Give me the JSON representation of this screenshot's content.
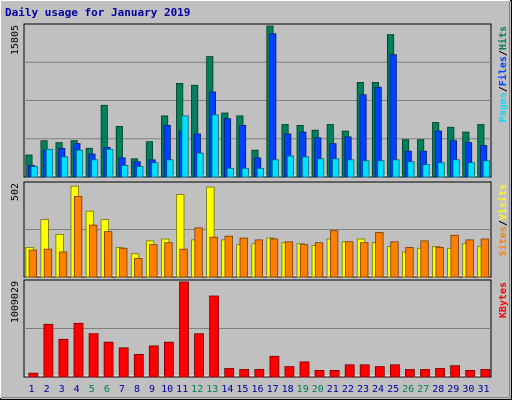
{
  "title": "Daily usage for January 2019",
  "colors": {
    "hits": "#00805c",
    "files": "#0040ff",
    "pages": "#00e0ff",
    "visits": "#ffff00",
    "sites": "#ff8000",
    "kbytes": "#ff0000",
    "weekend_label": "#00805c",
    "weekday_label": "#0000a0"
  },
  "chart_data": [
    {
      "type": "bar",
      "panel": "hits-files-pages",
      "ymax_label": "15805",
      "ylim": [
        0,
        15805
      ],
      "legend": [
        {
          "text": "Pages",
          "color": "#00e0ff"
        },
        {
          "text": "/",
          "color": "#000000"
        },
        {
          "text": "Files",
          "color": "#0040ff"
        },
        {
          "text": "/",
          "color": "#000000"
        },
        {
          "text": "Hits",
          "color": "#00805c"
        }
      ],
      "categories": [
        "1",
        "2",
        "3",
        "4",
        "5",
        "6",
        "7",
        "8",
        "9",
        "10",
        "11",
        "12",
        "13",
        "14",
        "15",
        "16",
        "17",
        "18",
        "19",
        "20",
        "21",
        "22",
        "23",
        "24",
        "25",
        "26",
        "27",
        "28",
        "29",
        "30",
        "31"
      ],
      "series": [
        {
          "name": "Hits",
          "values": [
            2300,
            3800,
            3600,
            3800,
            3000,
            7500,
            5300,
            1900,
            3700,
            6400,
            9800,
            9600,
            12600,
            6700,
            6400,
            2800,
            15805,
            5500,
            5400,
            4900,
            5500,
            4800,
            9900,
            9900,
            14900,
            3900,
            3900,
            5700,
            5200,
            4700,
            5500
          ]
        },
        {
          "name": "Files",
          "values": [
            1200,
            2800,
            3000,
            3500,
            2400,
            3100,
            2000,
            1600,
            1800,
            5400,
            4800,
            4500,
            8900,
            6100,
            5400,
            2000,
            15000,
            4500,
            4700,
            4100,
            3500,
            4200,
            8600,
            9400,
            12800,
            2700,
            2700,
            4800,
            3800,
            3600,
            3300
          ]
        },
        {
          "name": "Pages",
          "values": [
            1100,
            2900,
            2100,
            2800,
            1800,
            2900,
            1200,
            1100,
            1500,
            1800,
            6400,
            2500,
            6500,
            900,
            900,
            900,
            1800,
            2200,
            2100,
            1900,
            1900,
            1800,
            1700,
            1700,
            1800,
            1600,
            1300,
            1500,
            1800,
            1500,
            1700
          ]
        }
      ]
    },
    {
      "type": "bar",
      "panel": "visits-sites",
      "ymax_label": "502",
      "ylim": [
        0,
        502
      ],
      "legend": [
        {
          "text": "Sites",
          "color": "#ff8000"
        },
        {
          "text": "/",
          "color": "#000000"
        },
        {
          "text": "Visits",
          "color": "#ffff00"
        }
      ],
      "categories": [
        "1",
        "2",
        "3",
        "4",
        "5",
        "6",
        "7",
        "8",
        "9",
        "10",
        "11",
        "12",
        "13",
        "14",
        "15",
        "16",
        "17",
        "18",
        "19",
        "20",
        "21",
        "22",
        "23",
        "24",
        "25",
        "26",
        "27",
        "28",
        "29",
        "30",
        "31"
      ],
      "series": [
        {
          "name": "Visits",
          "values": [
            160,
            310,
            230,
            490,
            355,
            310,
            160,
            125,
            195,
            205,
            445,
            200,
            485,
            200,
            175,
            180,
            210,
            185,
            180,
            170,
            205,
            190,
            205,
            185,
            165,
            135,
            155,
            165,
            155,
            180,
            165
          ]
        },
        {
          "name": "Sites",
          "values": [
            145,
            150,
            135,
            435,
            280,
            245,
            155,
            100,
            175,
            185,
            150,
            265,
            215,
            220,
            210,
            200,
            205,
            190,
            175,
            185,
            250,
            190,
            185,
            240,
            190,
            160,
            195,
            160,
            225,
            200,
            205
          ]
        }
      ]
    },
    {
      "type": "bar",
      "panel": "kbytes",
      "ymax_label": "1009029",
      "ylim": [
        0,
        1009029
      ],
      "legend": [
        {
          "text": "KBytes",
          "color": "#ff0000"
        }
      ],
      "categories": [
        "1",
        "2",
        "3",
        "4",
        "5",
        "6",
        "7",
        "8",
        "9",
        "10",
        "11",
        "12",
        "13",
        "14",
        "15",
        "16",
        "17",
        "18",
        "19",
        "20",
        "21",
        "22",
        "23",
        "24",
        "25",
        "26",
        "27",
        "28",
        "29",
        "30",
        "31"
      ],
      "series": [
        {
          "name": "KBytes",
          "values": [
            40000,
            560000,
            400000,
            570000,
            460000,
            370000,
            310000,
            240000,
            330000,
            370000,
            1009029,
            460000,
            860000,
            90000,
            80000,
            80000,
            220000,
            110000,
            160000,
            70000,
            70000,
            130000,
            130000,
            110000,
            130000,
            80000,
            80000,
            90000,
            120000,
            70000,
            80000
          ]
        }
      ]
    }
  ],
  "x_labels": [
    "1",
    "2",
    "3",
    "4",
    "5",
    "6",
    "7",
    "8",
    "9",
    "10",
    "11",
    "12",
    "13",
    "14",
    "15",
    "16",
    "17",
    "18",
    "19",
    "20",
    "21",
    "22",
    "23",
    "24",
    "25",
    "26",
    "27",
    "28",
    "29",
    "30",
    "31"
  ],
  "weekend_days": [
    "5",
    "6",
    "12",
    "13",
    "19",
    "20",
    "26",
    "27"
  ]
}
